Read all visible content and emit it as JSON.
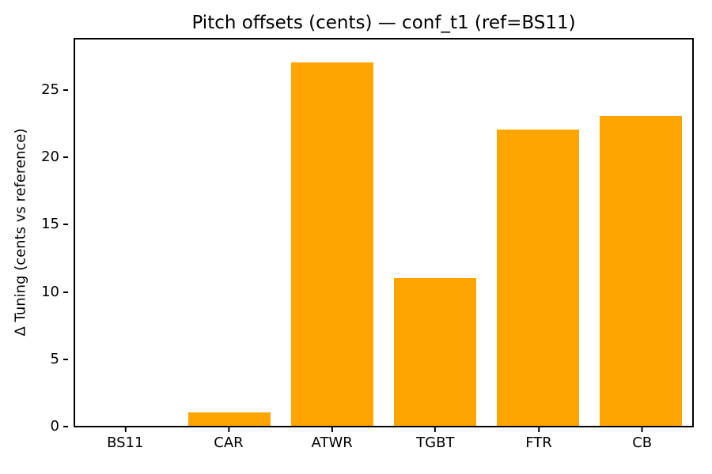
{
  "figure": {
    "background": "#ffffff"
  },
  "chart_data": {
    "type": "bar",
    "title": "Pitch offsets (cents) — conf_t1 (ref=BS11)",
    "ylabel": "Δ Tuning (cents vs reference)",
    "xlabel": "",
    "categories": [
      "BS11",
      "CAR",
      "ATWR",
      "TGBT",
      "FTR",
      "CB"
    ],
    "values": [
      0,
      1,
      27,
      11,
      22,
      23
    ],
    "yticks": [
      0,
      5,
      10,
      15,
      20,
      25
    ],
    "ylim": [
      0,
      28.7
    ],
    "bar_color": "#FFA500",
    "axis_color": "#000000",
    "grid": false,
    "legend_position": "none",
    "bar_width_fraction": 0.8
  }
}
